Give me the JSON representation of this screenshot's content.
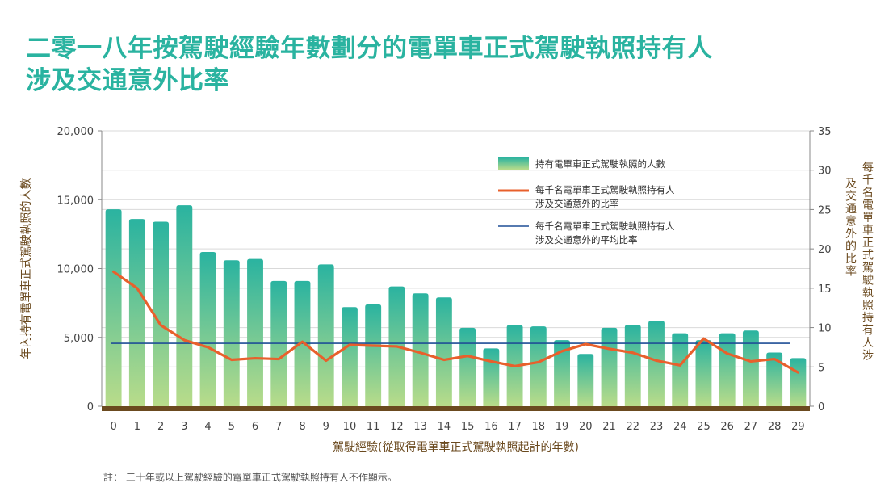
{
  "title": {
    "line1": "二零一八年按駕駛經驗年數劃分的電單車正式駕駛執照持有人",
    "line2": "涉及交通意外比率"
  },
  "note": "註： 三十年或以上駕駛經驗的電單車正式駕駛執照持有人不作顯示。",
  "colors": {
    "title": "#2ab3a0",
    "bar_top": "#2ab3a0",
    "bar_bottom": "#b9dc8a",
    "line": "#e8602c",
    "average": "#1f4e96",
    "axis_label": "#6b4a1f",
    "baseline": "#6b4a1f"
  },
  "chart_data": {
    "type": "bar",
    "categories": [
      "0",
      "1",
      "2",
      "3",
      "4",
      "5",
      "6",
      "7",
      "8",
      "9",
      "10",
      "11",
      "12",
      "13",
      "14",
      "15",
      "16",
      "17",
      "18",
      "19",
      "20",
      "21",
      "22",
      "23",
      "24",
      "25",
      "26",
      "27",
      "28",
      "29"
    ],
    "xlabel": "駕駛經驗(從取得電單車正式駕駛執照起計的年數)",
    "ylabel_left": "年內持有電單車正式駕駛執照的人數",
    "ylabel_right": "每千名電單車正式駕駛執照持有人涉及交通意外的比率",
    "ylim_left": [
      0,
      20000
    ],
    "yticks_left": [
      "0",
      "5,000",
      "10,000",
      "15,000",
      "20,000"
    ],
    "ylim_right": [
      0,
      35
    ],
    "yticks_right": [
      "0",
      "5",
      "10",
      "15",
      "20",
      "25",
      "30",
      "35"
    ],
    "grid": "horizontal",
    "series": [
      {
        "name": "持有電單車正式駕駛執照的人數",
        "type": "bar",
        "axis": "left",
        "values": [
          14300,
          13600,
          13400,
          14600,
          11200,
          10600,
          10700,
          9100,
          9100,
          10300,
          7200,
          7400,
          8700,
          8200,
          7900,
          5700,
          4200,
          5900,
          5800,
          4800,
          3800,
          5700,
          5900,
          6200,
          5300,
          4800,
          5300,
          5500,
          3900,
          3500
        ]
      },
      {
        "name": "每千名電單車正式駕駛執照持有人涉及交通意外的比率",
        "type": "line",
        "axis": "right",
        "values": [
          17.1,
          15.0,
          10.3,
          8.4,
          7.5,
          5.9,
          6.1,
          6.0,
          8.2,
          5.8,
          7.8,
          7.7,
          7.6,
          6.8,
          5.9,
          6.4,
          5.7,
          5.1,
          5.6,
          7.0,
          7.9,
          7.3,
          6.8,
          5.8,
          5.2,
          8.6,
          6.7,
          5.7,
          6.0,
          4.3
        ]
      },
      {
        "name": "每千名電單車正式駕駛執照持有人涉及交通意外的平均比率",
        "type": "average",
        "axis": "right",
        "value": 8.0
      }
    ],
    "legend": {
      "position": "top-right",
      "items": [
        {
          "line1": "持有電單車正式駕駛執照的人數",
          "line2": ""
        },
        {
          "line1": "每千名電單車正式駕駛執照持有人",
          "line2": "涉及交通意外的比率"
        },
        {
          "line1": "每千名電單車正式駕駛執照持有人",
          "line2": "涉及交通意外的平均比率"
        }
      ]
    }
  }
}
